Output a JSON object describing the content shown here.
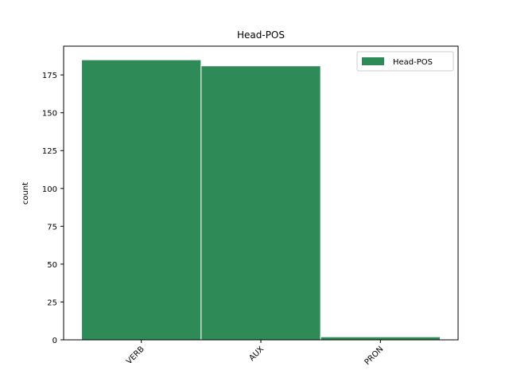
{
  "chart_data": {
    "type": "bar",
    "title": "Head-POS",
    "xlabel": "",
    "ylabel": "count",
    "categories": [
      "VERB",
      "AUX",
      "PRON"
    ],
    "series": [
      {
        "name": "Head-POS",
        "values": [
          185,
          181,
          2
        ]
      }
    ],
    "ylim": [
      0,
      194
    ],
    "yticks": [
      0,
      25,
      50,
      75,
      100,
      125,
      150,
      175
    ],
    "legend": "top-right",
    "grid": false,
    "bar_color": "#2e8b57",
    "bar_edge_color": "#ffffff"
  }
}
